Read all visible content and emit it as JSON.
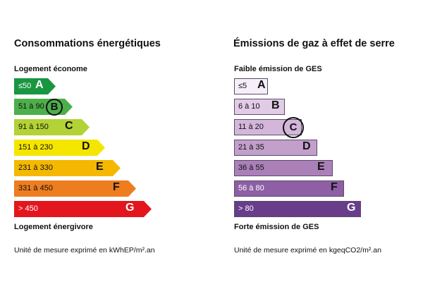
{
  "energy": {
    "title": "Consommations énergétiques",
    "label_top": "Logement économe",
    "label_bottom": "Logement énergivore",
    "unit": "Unité de mesure exprimé en kWhEP/m².an",
    "current_class": "B",
    "classes": [
      {
        "letter": "A",
        "range": "≤50",
        "color": "#1a9641"
      },
      {
        "letter": "B",
        "range": "51 à 90",
        "color": "#4daf4a"
      },
      {
        "letter": "C",
        "range": "91 à 150",
        "color": "#b2d235"
      },
      {
        "letter": "D",
        "range": "151 à 230",
        "color": "#f5e600"
      },
      {
        "letter": "E",
        "range": "231 à 330",
        "color": "#f5b800"
      },
      {
        "letter": "F",
        "range": "331 à 450",
        "color": "#ee7d1f"
      },
      {
        "letter": "G",
        "range": "> 450",
        "color": "#e3161d"
      }
    ]
  },
  "ges": {
    "title": "Émissions de gaz à effet de serre",
    "label_top": "Faible émission de GES",
    "label_bottom": "Forte émission de GES",
    "unit": "Unité de mesure exprimé en kgeqCO2/m².an",
    "current_class": "C",
    "classes": [
      {
        "letter": "A",
        "range": "≤5",
        "color": "#f6eef8"
      },
      {
        "letter": "B",
        "range": "6 à 10",
        "color": "#e2cbe6"
      },
      {
        "letter": "C",
        "range": "11 à 20",
        "color": "#d3b6da"
      },
      {
        "letter": "D",
        "range": "21 à 35",
        "color": "#c39fcc"
      },
      {
        "letter": "E",
        "range": "36 à 55",
        "color": "#ab80b9"
      },
      {
        "letter": "F",
        "range": "56 à 80",
        "color": "#8e5fa4"
      },
      {
        "letter": "G",
        "range": "> 80",
        "color": "#6a3d8a"
      }
    ]
  }
}
